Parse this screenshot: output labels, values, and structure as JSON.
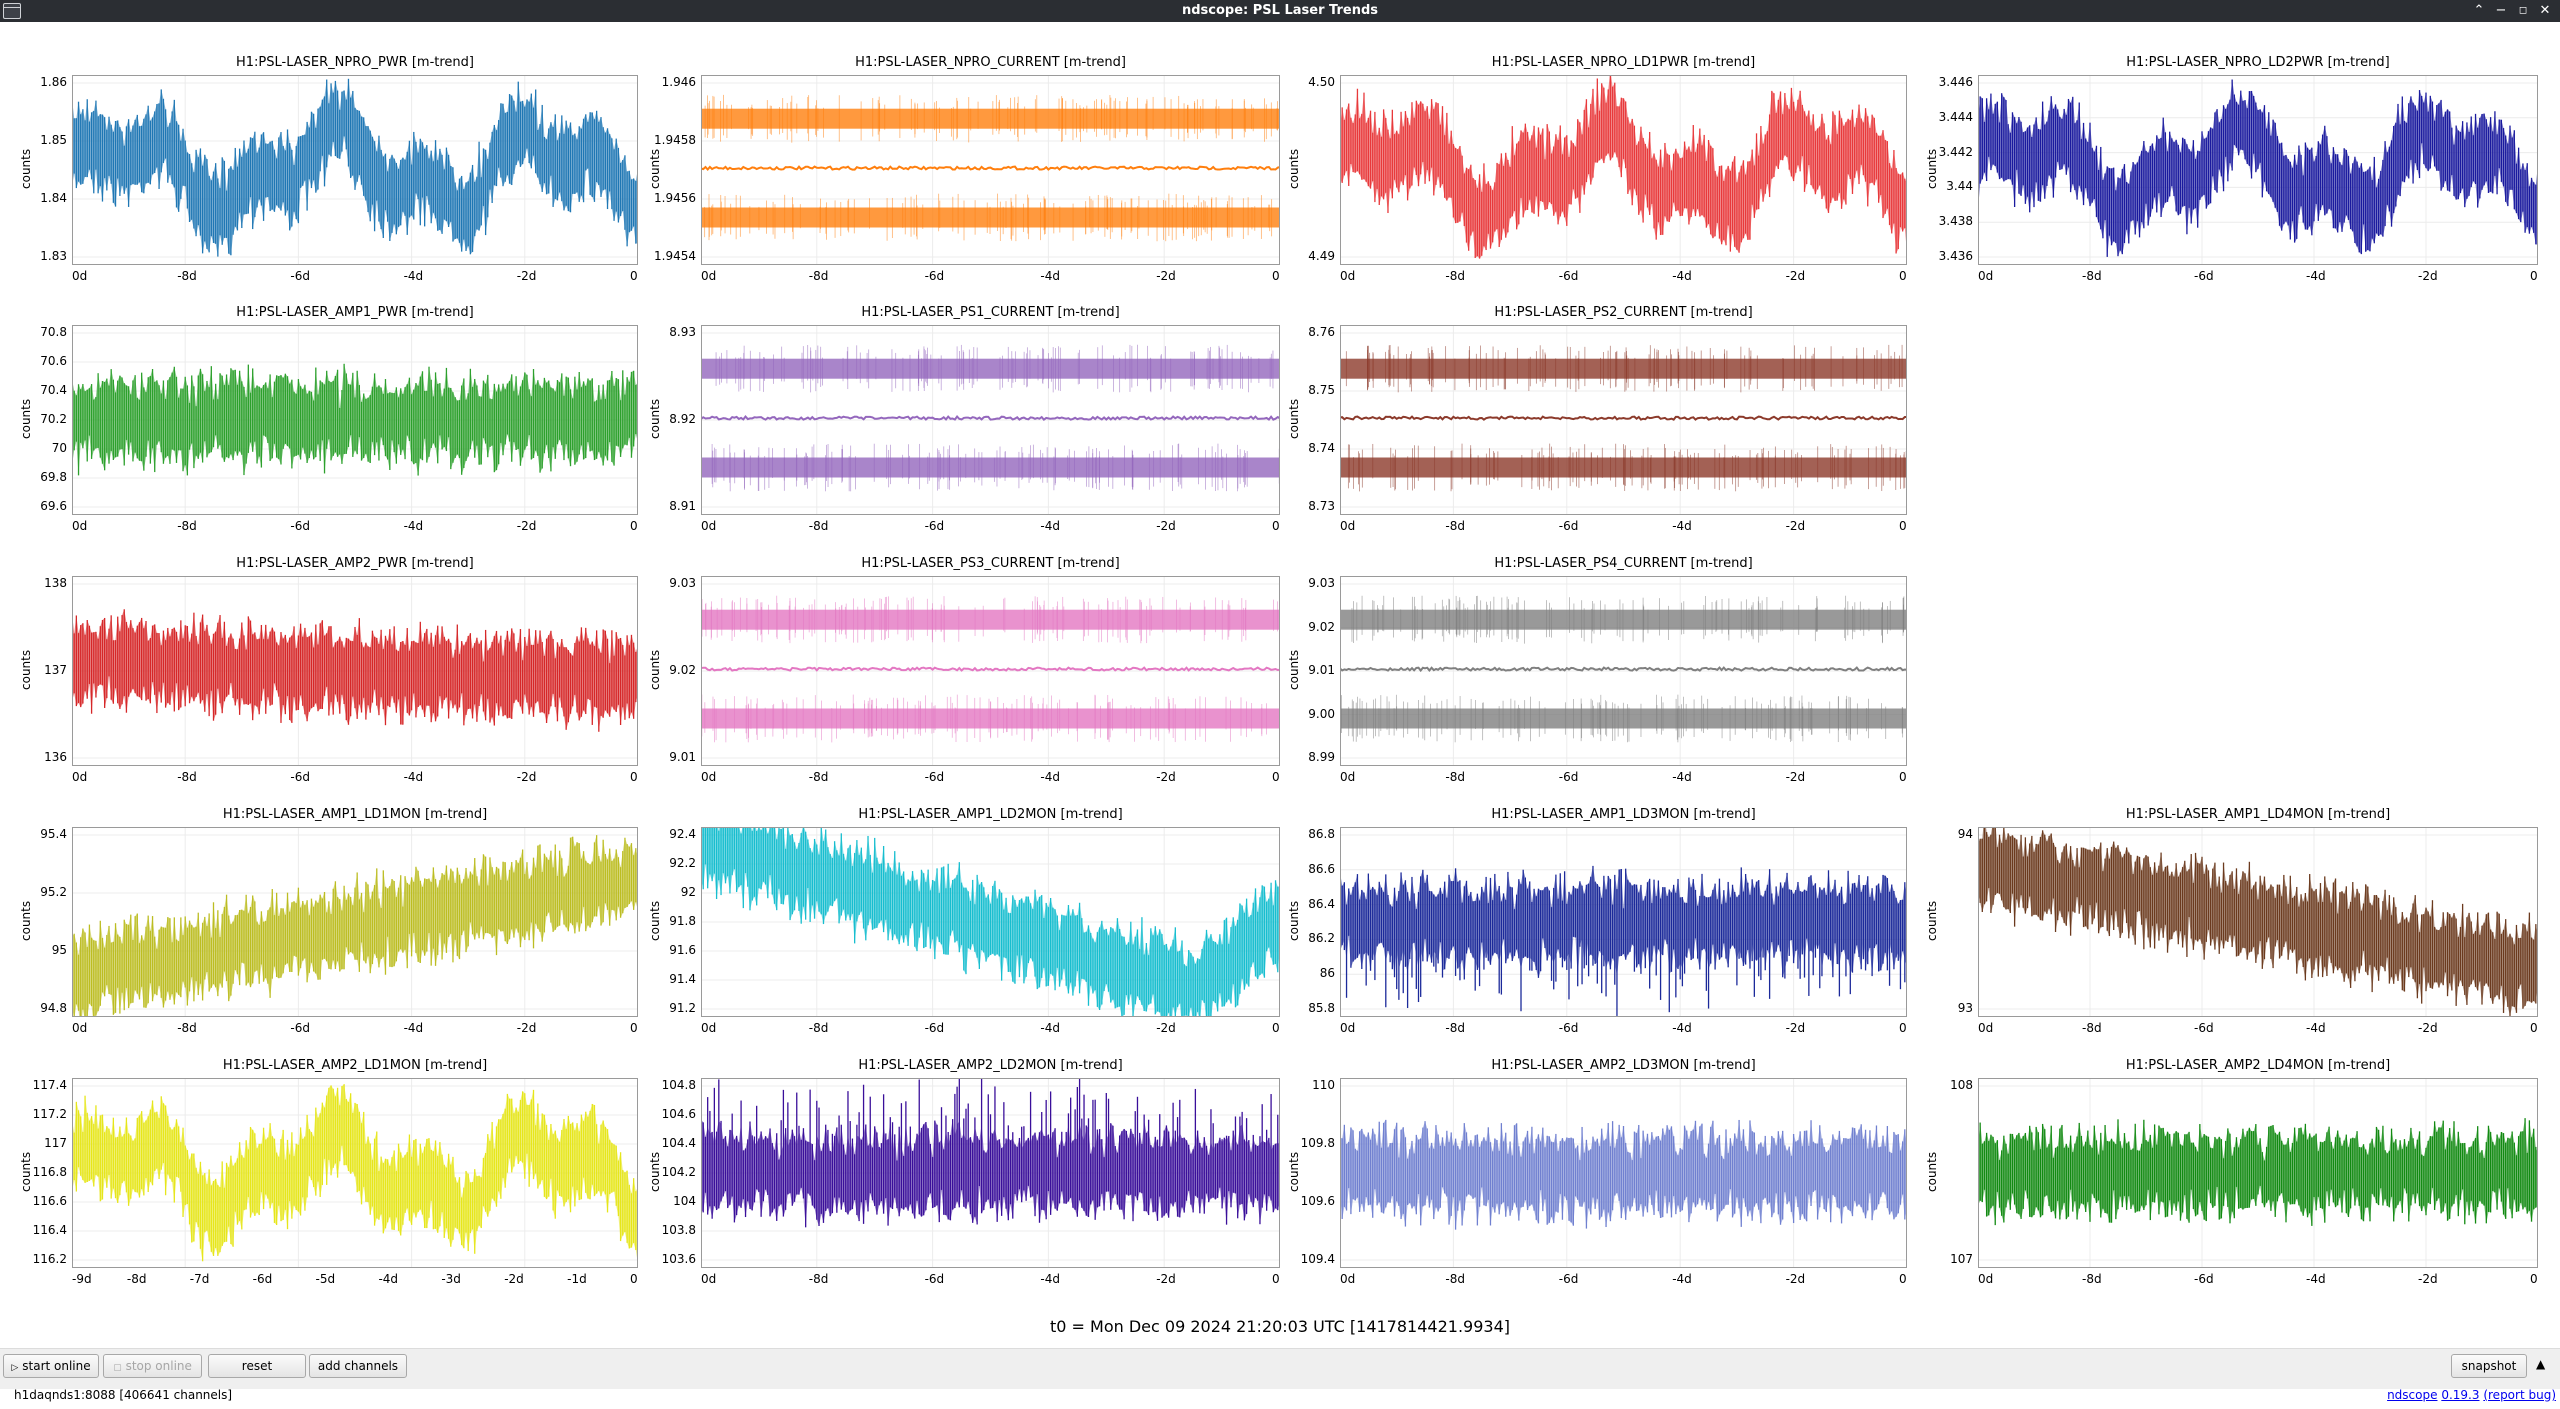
{
  "window": {
    "title": "ndscope: PSL Laser Trends",
    "controls": [
      "minimize",
      "maximize",
      "restore",
      "close"
    ]
  },
  "plots": [
    {
      "title": "H1:PSL-LASER_NPRO_PWR [m-trend]",
      "ylabel": "counts",
      "color": "#1f77b4",
      "style": "band",
      "trend": "wander",
      "yticks": [
        "1.86",
        "1.85",
        "1.84",
        "1.83"
      ],
      "xticks": [
        "0d",
        "-8d",
        "-6d",
        "-4d",
        "-2d",
        "0"
      ]
    },
    {
      "title": "H1:PSL-LASER_NPRO_CURRENT [m-trend]",
      "ylabel": "counts",
      "color": "#ff7f0e",
      "style": "quantized",
      "trend": "flat",
      "yticks": [
        "1.946",
        "1.9458",
        "1.9456",
        "1.9454"
      ],
      "xticks": [
        "0d",
        "-8d",
        "-6d",
        "-4d",
        "-2d",
        "0"
      ]
    },
    {
      "title": "H1:PSL-LASER_NPRO_LD1PWR [m-trend]",
      "ylabel": "counts",
      "color": "#e8393b",
      "style": "band",
      "trend": "wander",
      "yticks": [
        "4.50",
        "4.49"
      ],
      "xticks": [
        "0d",
        "-8d",
        "-6d",
        "-4d",
        "-2d",
        "0"
      ]
    },
    {
      "title": "H1:PSL-LASER_NPRO_LD2PWR [m-trend]",
      "ylabel": "counts",
      "color": "#1a1a9e",
      "style": "band",
      "trend": "wander",
      "yticks": [
        "3.446",
        "3.444",
        "3.442",
        "3.44",
        "3.438",
        "3.436"
      ],
      "xticks": [
        "0d",
        "-8d",
        "-6d",
        "-4d",
        "-2d",
        "0"
      ]
    },
    {
      "title": "H1:PSL-LASER_AMP1_PWR [m-trend]",
      "ylabel": "counts",
      "color": "#2ca02c",
      "style": "band",
      "trend": "flat",
      "yticks": [
        "70.8",
        "70.6",
        "70.4",
        "70.2",
        "70",
        "69.8",
        "69.6"
      ],
      "xticks": [
        "0d",
        "-8d",
        "-6d",
        "-4d",
        "-2d",
        "0"
      ]
    },
    {
      "title": "H1:PSL-LASER_PS1_CURRENT [m-trend]",
      "ylabel": "counts",
      "color": "#9467bd",
      "style": "quantized",
      "trend": "flat",
      "yticks": [
        "8.93",
        "8.92",
        "8.91"
      ],
      "xticks": [
        "0d",
        "-8d",
        "-6d",
        "-4d",
        "-2d",
        "0"
      ]
    },
    {
      "title": "H1:PSL-LASER_PS2_CURRENT [m-trend]",
      "ylabel": "counts",
      "color": "#8c3a2b",
      "style": "quantized",
      "trend": "flat",
      "yticks": [
        "8.76",
        "8.75",
        "8.74",
        "8.73"
      ],
      "xticks": [
        "0d",
        "-8d",
        "-6d",
        "-4d",
        "-2d",
        "0"
      ]
    },
    null,
    {
      "title": "H1:PSL-LASER_AMP2_PWR [m-trend]",
      "ylabel": "counts",
      "color": "#d62728",
      "style": "band",
      "trend": "down-slight",
      "yticks": [
        "138",
        "137",
        "136"
      ],
      "xticks": [
        "0d",
        "-8d",
        "-6d",
        "-4d",
        "-2d",
        "0"
      ]
    },
    {
      "title": "H1:PSL-LASER_PS3_CURRENT [m-trend]",
      "ylabel": "counts",
      "color": "#e377c2",
      "style": "quantized",
      "trend": "flat",
      "yticks": [
        "9.03",
        "9.02",
        "9.01"
      ],
      "xticks": [
        "0d",
        "-8d",
        "-6d",
        "-4d",
        "-2d",
        "0"
      ]
    },
    {
      "title": "H1:PSL-LASER_PS4_CURRENT [m-trend]",
      "ylabel": "counts",
      "color": "#7f7f7f",
      "style": "quantized",
      "trend": "flat",
      "yticks": [
        "9.03",
        "9.02",
        "9.01",
        "9.00",
        "8.99"
      ],
      "xticks": [
        "0d",
        "-8d",
        "-6d",
        "-4d",
        "-2d",
        "0"
      ]
    },
    null,
    {
      "title": "H1:PSL-LASER_AMP1_LD1MON [m-trend]",
      "ylabel": "counts",
      "color": "#bcbd22",
      "style": "band",
      "trend": "up",
      "yticks": [
        "95.4",
        "95.2",
        "95",
        "94.8"
      ],
      "xticks": [
        "0d",
        "-8d",
        "-6d",
        "-4d",
        "-2d",
        "0"
      ]
    },
    {
      "title": "H1:PSL-LASER_AMP1_LD2MON [m-trend]",
      "ylabel": "counts",
      "color": "#17becf",
      "style": "band",
      "trend": "down-dip",
      "yticks": [
        "92.4",
        "92.2",
        "92",
        "91.8",
        "91.6",
        "91.4",
        "91.2"
      ],
      "xticks": [
        "0d",
        "-8d",
        "-6d",
        "-4d",
        "-2d",
        "0"
      ]
    },
    {
      "title": "H1:PSL-LASER_AMP1_LD3MON [m-trend]",
      "ylabel": "counts",
      "color": "#1c2a9a",
      "style": "spiky",
      "trend": "flat",
      "yticks": [
        "86.8",
        "86.6",
        "86.4",
        "86.2",
        "86",
        "85.8"
      ],
      "xticks": [
        "0d",
        "-8d",
        "-6d",
        "-4d",
        "-2d",
        "0"
      ]
    },
    {
      "title": "H1:PSL-LASER_AMP1_LD4MON [m-trend]",
      "ylabel": "counts",
      "color": "#6b3a1e",
      "style": "band",
      "trend": "down",
      "yticks": [
        "94",
        "93"
      ],
      "xticks": [
        "0d",
        "-8d",
        "-6d",
        "-4d",
        "-2d",
        "0"
      ]
    },
    {
      "title": "H1:PSL-LASER_AMP2_LD1MON [m-trend]",
      "ylabel": "counts",
      "color": "#e6e61a",
      "style": "band",
      "trend": "wander",
      "yticks": [
        "117.4",
        "117.2",
        "117",
        "116.8",
        "116.6",
        "116.4",
        "116.2"
      ],
      "xticks": [
        "-9d",
        "-8d",
        "-7d",
        "-6d",
        "-5d",
        "-4d",
        "-3d",
        "-2d",
        "-1d",
        "0"
      ]
    },
    {
      "title": "H1:PSL-LASER_AMP2_LD2MON [m-trend]",
      "ylabel": "counts",
      "color": "#3a0f9a",
      "style": "spiky-up",
      "trend": "flat",
      "yticks": [
        "104.8",
        "104.6",
        "104.4",
        "104.2",
        "104",
        "103.8",
        "103.6"
      ],
      "xticks": [
        "0d",
        "-8d",
        "-6d",
        "-4d",
        "-2d",
        "0"
      ]
    },
    {
      "title": "H1:PSL-LASER_AMP2_LD3MON [m-trend]",
      "ylabel": "counts",
      "color": "#7080d0",
      "style": "band",
      "trend": "flat",
      "yticks": [
        "110",
        "109.8",
        "109.6",
        "109.4"
      ],
      "xticks": [
        "0d",
        "-8d",
        "-6d",
        "-4d",
        "-2d",
        "0"
      ]
    },
    {
      "title": "H1:PSL-LASER_AMP2_LD4MON [m-trend]",
      "ylabel": "counts",
      "color": "#128a12",
      "style": "band",
      "trend": "flat",
      "yticks": [
        "108",
        "107"
      ],
      "xticks": [
        "0d",
        "-8d",
        "-6d",
        "-4d",
        "-2d",
        "0"
      ]
    }
  ],
  "t0_label": "t0 = Mon Dec 09 2024 21:20:03 UTC [1417814421.9934]",
  "toolbar": {
    "start_online": "start online",
    "stop_online": "stop online",
    "reset": "reset",
    "add_channels": "add channels",
    "snapshot": "snapshot"
  },
  "status": {
    "server": "h1daqnds1:8088  [406641 channels]",
    "app_name": "ndscope",
    "version": "0.19.3",
    "report_bug": "(report bug)"
  }
}
